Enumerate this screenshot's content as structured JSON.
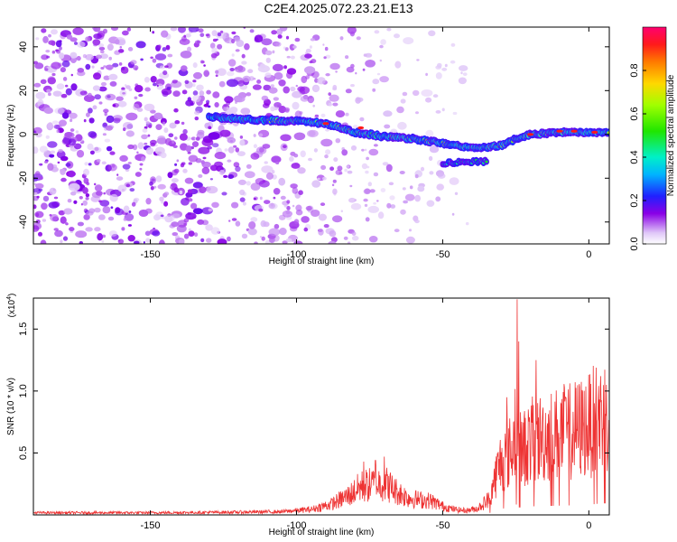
{
  "title": "C2E4.2025.072.23.21.E13",
  "chart_data": [
    {
      "type": "heatmap",
      "xlabel": "Height of straight line (km)",
      "ylabel": "Frequency (Hz)",
      "xlim": [
        -190,
        7
      ],
      "ylim": [
        -50,
        49
      ],
      "xticks": [
        -150,
        -100,
        -50,
        0
      ],
      "xtick_labels": [
        "-150",
        "-100",
        "-50",
        "0"
      ],
      "yticks": [
        -40,
        -20,
        0,
        20,
        40
      ],
      "ytick_labels": [
        "-40",
        "-20",
        "0",
        "20",
        "40"
      ],
      "colorbar": {
        "label": "Normalized spectral amplitude",
        "range": [
          0,
          1
        ],
        "ticks": [
          0.0,
          0.2,
          0.4,
          0.6,
          0.8
        ],
        "tick_labels": [
          "0.0",
          "0.2",
          "0.4",
          "0.6",
          "0.8"
        ]
      },
      "ridge": {
        "x": [
          -130,
          -120,
          -110,
          -100,
          -90,
          -80,
          -70,
          -60,
          -50,
          -45,
          -40,
          -35,
          -30,
          -25,
          -20,
          -10,
          0,
          7
        ],
        "y": [
          8,
          7,
          6.5,
          6,
          5,
          1,
          -1,
          -2,
          -4,
          -5,
          -6,
          -6,
          -5,
          -2,
          0,
          1,
          1,
          1
        ]
      },
      "noise_x_range": [
        -190,
        -95
      ],
      "noise_y_range": [
        -50,
        49
      ]
    },
    {
      "type": "line",
      "xlabel": "Height of straight line (km)",
      "ylabel": "SNR (10 * v/v)",
      "yunit": "(x10",
      "yunit_exp": "4",
      "yunit_close": ")",
      "xlim": [
        -190,
        7
      ],
      "ylim": [
        0,
        1.75
      ],
      "xticks": [
        -150,
        -100,
        -50,
        0
      ],
      "xtick_labels": [
        "-150",
        "-100",
        "-50",
        "0"
      ],
      "yticks": [
        0.5,
        1.0,
        1.5
      ],
      "ytick_labels": [
        "0.5",
        "1.0",
        "1.5"
      ],
      "series": [
        {
          "color": "#ee3333",
          "envelope_x": [
            -190,
            -150,
            -120,
            -105,
            -95,
            -88,
            -82,
            -78,
            -74,
            -70,
            -66,
            -62,
            -58,
            -54,
            -50,
            -46,
            -42,
            -38,
            -34,
            -32,
            -30,
            -28,
            -26,
            -25,
            -24,
            -22,
            -20,
            -15,
            -10,
            -5,
            0,
            3,
            7
          ],
          "envelope_y": [
            0.02,
            0.02,
            0.025,
            0.03,
            0.05,
            0.1,
            0.18,
            0.26,
            0.28,
            0.3,
            0.22,
            0.16,
            0.14,
            0.13,
            0.08,
            0.05,
            0.04,
            0.06,
            0.15,
            0.35,
            0.5,
            0.55,
            0.6,
            0.9,
            0.6,
            0.62,
            0.68,
            0.72,
            0.75,
            0.78,
            0.82,
            0.9,
            0.95
          ],
          "spikes": [
            {
              "x": -24.5,
              "y": 1.74
            },
            {
              "x": -24.0,
              "y": 1.4
            },
            {
              "x": -18.0,
              "y": 1.25
            },
            {
              "x": -70.0,
              "y": 0.47
            },
            {
              "x": -73.0,
              "y": 0.44
            },
            {
              "x": -77.0,
              "y": 0.43
            },
            {
              "x": 4.0,
              "y": 1.12
            },
            {
              "x": 6.0,
              "y": 1.05
            },
            {
              "x": -28.0,
              "y": 0.95
            },
            {
              "x": -8.0,
              "y": 0.95
            }
          ]
        }
      ]
    }
  ]
}
